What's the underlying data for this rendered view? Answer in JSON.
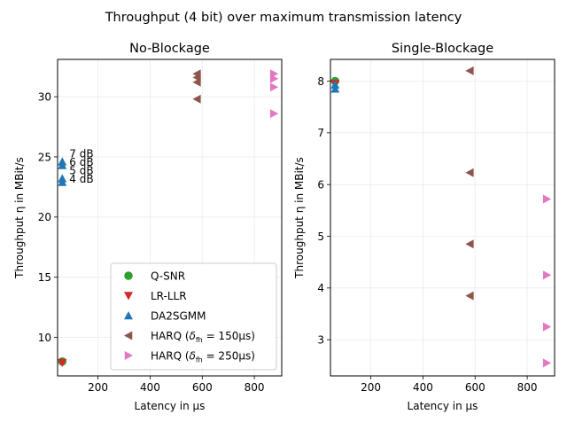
{
  "figure": {
    "suptitle": "Throughput (4 bit) over maximum transmission latency"
  },
  "legend_entries": [
    {
      "key": "qsnr",
      "label": "Q-SNR",
      "color": "#2ca02c",
      "marker": "circle"
    },
    {
      "key": "lrllr",
      "label": "LR-LLR",
      "color": "#d62728",
      "marker": "triangle-down"
    },
    {
      "key": "da2sgmm",
      "label": "DA2SGMM",
      "color": "#1f77b4",
      "marker": "triangle-up"
    },
    {
      "key": "harq150",
      "label_prefix": "HARQ (",
      "label_symbol": "δ",
      "label_sub": "fh",
      "label_suffix": " = 150μs)",
      "color": "#8c564b",
      "marker": "triangle-left"
    },
    {
      "key": "harq250",
      "label_prefix": "HARQ (",
      "label_symbol": "δ",
      "label_sub": "fh",
      "label_suffix": " = 250μs)",
      "color": "#e377c2",
      "marker": "triangle-right"
    }
  ],
  "chart_data": [
    {
      "type": "scatter",
      "title": "No-Blockage",
      "xlabel": "Latency in μs",
      "ylabel": "Throughput η in MBit/s",
      "xlim": [
        45,
        905
      ],
      "ylim": [
        6.8,
        33.1
      ],
      "xticks": [
        200,
        400,
        600,
        800
      ],
      "yticks": [
        10,
        15,
        20,
        25,
        30
      ],
      "grid": true,
      "legend": "lower-right",
      "series": [
        {
          "name": "Q-SNR",
          "key": "qsnr",
          "x": [
            63
          ],
          "y": [
            8.0
          ]
        },
        {
          "name": "LR-LLR",
          "key": "lrllr",
          "x": [
            63
          ],
          "y": [
            7.9
          ]
        },
        {
          "name": "DA2SGMM",
          "key": "da2sgmm",
          "x": [
            63,
            63,
            63,
            63
          ],
          "y": [
            24.6,
            24.3,
            23.2,
            22.9
          ]
        },
        {
          "name": "HARQ (δfh = 150μs)",
          "key": "harq150",
          "x": [
            580,
            580,
            580,
            580
          ],
          "y": [
            31.9,
            31.6,
            31.2,
            29.8
          ]
        },
        {
          "name": "HARQ (δfh = 250μs)",
          "key": "harq250",
          "x": [
            875,
            875,
            875,
            875
          ],
          "y": [
            31.9,
            31.5,
            30.8,
            28.6
          ]
        }
      ],
      "annotations": [
        {
          "text": "7 dB",
          "x": 63,
          "y": 25.3
        },
        {
          "text": "6 dB",
          "x": 63,
          "y": 24.6
        },
        {
          "text": "5 dB",
          "x": 63,
          "y": 23.9
        },
        {
          "text": "4 dB",
          "x": 63,
          "y": 23.2
        }
      ]
    },
    {
      "type": "scatter",
      "title": "Single-Blockage",
      "xlabel": "Latency in μs",
      "ylabel": "Throughput η in MBit/s",
      "xlim": [
        45,
        905
      ],
      "ylim": [
        2.3,
        8.42
      ],
      "xticks": [
        200,
        400,
        600,
        800
      ],
      "yticks": [
        3,
        4,
        5,
        6,
        7,
        8
      ],
      "grid": true,
      "series": [
        {
          "name": "Q-SNR",
          "key": "qsnr",
          "x": [
            63
          ],
          "y": [
            8.0
          ]
        },
        {
          "name": "LR-LLR",
          "key": "lrllr",
          "x": [
            63
          ],
          "y": [
            7.95
          ]
        },
        {
          "name": "DA2SGMM",
          "key": "da2sgmm",
          "x": [
            63,
            63
          ],
          "y": [
            7.93,
            7.85
          ]
        },
        {
          "name": "HARQ (δfh = 150μs)",
          "key": "harq150",
          "x": [
            580,
            580,
            580,
            580
          ],
          "y": [
            8.2,
            6.23,
            4.85,
            3.85
          ]
        },
        {
          "name": "HARQ (δfh = 250μs)",
          "key": "harq250",
          "x": [
            875,
            875,
            875,
            875
          ],
          "y": [
            5.72,
            4.25,
            3.25,
            2.55
          ]
        }
      ]
    }
  ]
}
